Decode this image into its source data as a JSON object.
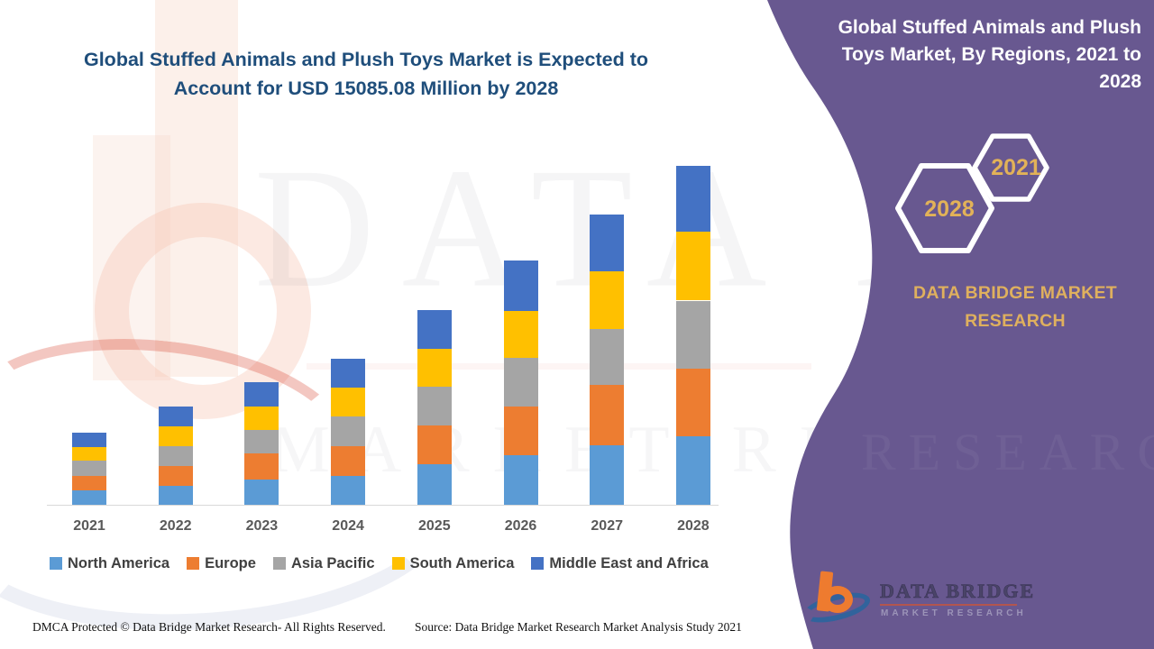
{
  "page": {
    "main_title": "Global Stuffed Animals and Plush Toys Market is Expected to Account for USD 15085.08 Million by 2028",
    "footer_dmca": "DMCA Protected © Data Bridge Market Research- All Rights Reserved.",
    "footer_source": "Source: Data Bridge Market Research Market Analysis Study 2021"
  },
  "side_panel": {
    "title": "Global Stuffed Animals and Plush Toys Market, By Regions, 2021 to 2028",
    "hexagon_top_year": "2021",
    "hexagon_bottom_year": "2028",
    "brand_text": "DATA BRIDGE MARKET RESEARCH",
    "logo_name": "DATA BRIDGE",
    "logo_subtitle": "MARKET RESEARCH",
    "panel_color": "#685890",
    "accent_gold": "#E2B258"
  },
  "watermark": {
    "text_primary": "DATA BRIDGE",
    "text_secondary": "MARKET RESEARCH",
    "panel_text": "RESEARCH"
  },
  "chart_data": {
    "type": "bar",
    "stacked": true,
    "unit": "USD Million",
    "title": "Global Stuffed Animals and Plush Toys Market, By Regions, 2021 to 2028",
    "xlabel": "",
    "ylabel": "",
    "y_axis_visible": false,
    "grid": false,
    "legend_position": "bottom",
    "categories": [
      "2021",
      "2022",
      "2023",
      "2024",
      "2025",
      "2026",
      "2027",
      "2028"
    ],
    "series": [
      {
        "name": "North America",
        "color": "#5B9BD5",
        "values": [
          650,
          845,
          1140,
          1300,
          1785,
          2185,
          2655,
          3035
        ]
      },
      {
        "name": "Europe",
        "color": "#ED7D31",
        "values": [
          645,
          895,
          1140,
          1315,
          1745,
          2175,
          2655,
          3005
        ]
      },
      {
        "name": "Asia Pacific",
        "color": "#A5A5A5",
        "values": [
          660,
          875,
          1045,
          1300,
          1705,
          2185,
          2485,
          3035
        ]
      },
      {
        "name": "South America",
        "color": "#FFC000",
        "values": [
          620,
          885,
          1060,
          1290,
          1690,
          2070,
          2575,
          3060
        ]
      },
      {
        "name": "Middle East and Africa",
        "color": "#4472C4",
        "values": [
          635,
          860,
          1075,
          1305,
          1730,
          2225,
          2535,
          2950
        ]
      }
    ],
    "totals_estimated": [
      3210,
      4360,
      5460,
      6510,
      8655,
      10840,
      12905,
      15085
    ],
    "value_2028_from_title": 15085.08
  }
}
